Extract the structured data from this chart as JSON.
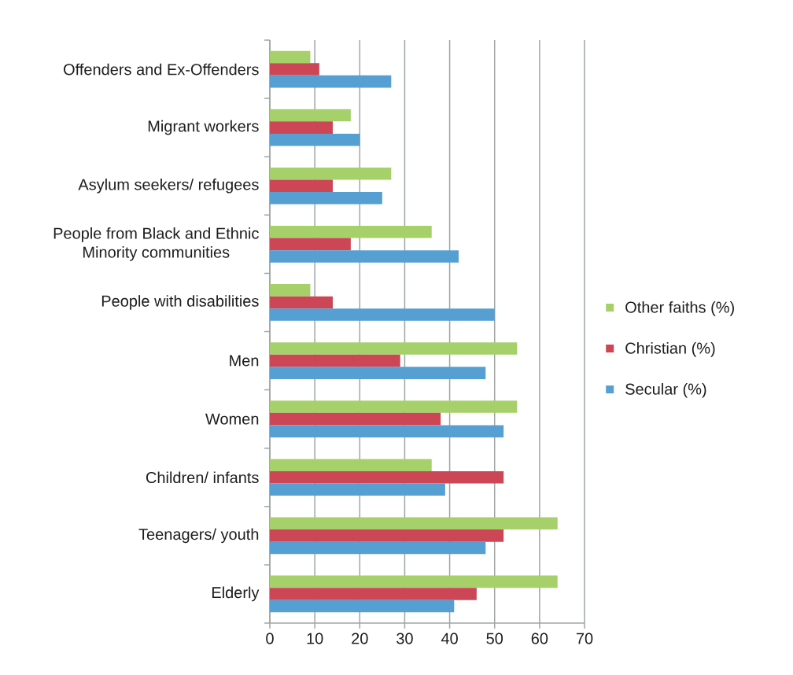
{
  "chart_data": {
    "type": "bar",
    "orientation": "horizontal",
    "categories": [
      "Offenders and Ex-Offenders",
      "Migrant workers",
      "Asylum seekers/ refugees",
      "People from Black and Ethnic Minority communities",
      "People with disabilities",
      "Men",
      "Women",
      "Children/ infants",
      "Teenagers/ youth",
      "Elderly"
    ],
    "series": [
      {
        "name": "Other faiths (%)",
        "color": "#a6d06a",
        "values": [
          9,
          18,
          27,
          36,
          9,
          55,
          55,
          36,
          64,
          64
        ]
      },
      {
        "name": "Christian (%)",
        "color": "#cc4656",
        "values": [
          11,
          14,
          14,
          18,
          14,
          29,
          38,
          52,
          52,
          46
        ]
      },
      {
        "name": "Secular (%)",
        "color": "#559fd2",
        "values": [
          27,
          20,
          25,
          42,
          50,
          48,
          52,
          39,
          48,
          41
        ]
      }
    ],
    "xlim": [
      0,
      70
    ],
    "xticks": [
      0,
      10,
      20,
      30,
      40,
      50,
      60,
      70
    ],
    "grid": "x",
    "legend": "right"
  }
}
